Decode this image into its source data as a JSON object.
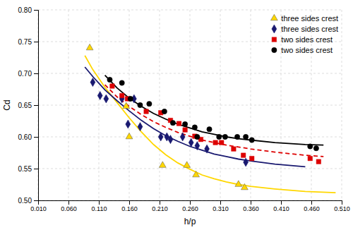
{
  "chart_data": {
    "type": "scatter",
    "xlabel": "h/p",
    "ylabel": "Cd",
    "xlim": [
      0.01,
      0.51
    ],
    "ylim": [
      0.5,
      0.8
    ],
    "xticks": [
      {
        "value": 0.01,
        "label": "0.010"
      },
      {
        "value": 0.06,
        "label": "0.060"
      },
      {
        "value": 0.11,
        "label": "0.110"
      },
      {
        "value": 0.16,
        "label": "0.160"
      },
      {
        "value": 0.21,
        "label": "0.210"
      },
      {
        "value": 0.26,
        "label": "0.260"
      },
      {
        "value": 0.31,
        "label": "0.310"
      },
      {
        "value": 0.36,
        "label": "0.360"
      },
      {
        "value": 0.41,
        "label": "0.410"
      },
      {
        "value": 0.46,
        "label": "0.460"
      },
      {
        "value": 0.51,
        "label": "0.510"
      }
    ],
    "yticks": [
      {
        "value": 0.5,
        "label": "0.50"
      },
      {
        "value": 0.55,
        "label": "0.55"
      },
      {
        "value": 0.6,
        "label": "0.60"
      },
      {
        "value": 0.65,
        "label": "0.65"
      },
      {
        "value": 0.7,
        "label": "0.70"
      },
      {
        "value": 0.75,
        "label": "0.75"
      },
      {
        "value": 0.8,
        "label": "0.80"
      }
    ],
    "grid": true,
    "legend": "upper right",
    "series": [
      {
        "type": "line",
        "color": "#FFD700",
        "line_style": "solid",
        "x": [
          0.087,
          0.1,
          0.12,
          0.14,
          0.16,
          0.18,
          0.2,
          0.22,
          0.24,
          0.26,
          0.28,
          0.3,
          0.32,
          0.34,
          0.36,
          0.4,
          0.45,
          0.5
        ],
        "values": [
          0.728,
          0.706,
          0.678,
          0.654,
          0.63,
          0.608,
          0.588,
          0.572,
          0.559,
          0.549,
          0.54,
          0.534,
          0.529,
          0.525,
          0.522,
          0.518,
          0.514,
          0.512
        ]
      },
      {
        "type": "line",
        "color": "#191970",
        "line_style": "solid",
        "x": [
          0.087,
          0.1,
          0.12,
          0.14,
          0.16,
          0.18,
          0.2,
          0.22,
          0.24,
          0.26,
          0.28,
          0.3,
          0.32,
          0.34,
          0.36,
          0.4,
          0.45
        ],
        "values": [
          0.71,
          0.695,
          0.674,
          0.657,
          0.641,
          0.626,
          0.613,
          0.602,
          0.593,
          0.585,
          0.579,
          0.573,
          0.569,
          0.565,
          0.562,
          0.557,
          0.553
        ]
      },
      {
        "type": "line",
        "color": "#DD0000",
        "line_style": "dashed",
        "x": [
          0.12,
          0.14,
          0.16,
          0.18,
          0.2,
          0.22,
          0.24,
          0.26,
          0.28,
          0.3,
          0.32,
          0.34,
          0.36,
          0.4,
          0.45,
          0.48
        ],
        "values": [
          0.682,
          0.663,
          0.648,
          0.635,
          0.624,
          0.615,
          0.607,
          0.601,
          0.595,
          0.591,
          0.587,
          0.584,
          0.581,
          0.576,
          0.571,
          0.569
        ]
      },
      {
        "type": "line",
        "color": "black",
        "line_style": "solid",
        "x": [
          0.12,
          0.14,
          0.16,
          0.18,
          0.2,
          0.22,
          0.24,
          0.26,
          0.28,
          0.3,
          0.32,
          0.34,
          0.36,
          0.4,
          0.45,
          0.48
        ],
        "values": [
          0.697,
          0.677,
          0.661,
          0.648,
          0.637,
          0.628,
          0.62,
          0.614,
          0.608,
          0.604,
          0.6,
          0.597,
          0.595,
          0.591,
          0.588,
          0.587
        ]
      },
      {
        "type": "scatter",
        "name": "three sides crest",
        "color": "#FFD700",
        "marker": "triangle",
        "x": [
          0.095,
          0.155,
          0.16,
          0.215,
          0.255,
          0.27,
          0.34,
          0.35
        ],
        "values": [
          0.74,
          0.648,
          0.6,
          0.555,
          0.555,
          0.54,
          0.525,
          0.52
        ]
      },
      {
        "type": "scatter",
        "name": "three sides crest",
        "color": "#191970",
        "marker": "diamond",
        "x": [
          0.1,
          0.112,
          0.122,
          0.148,
          0.158,
          0.168,
          0.178,
          0.212,
          0.222,
          0.228,
          0.248,
          0.262,
          0.272,
          0.288,
          0.352
        ],
        "values": [
          0.686,
          0.665,
          0.66,
          0.66,
          0.62,
          0.66,
          0.616,
          0.6,
          0.6,
          0.596,
          0.6,
          0.591,
          0.586,
          0.581,
          0.56
        ]
      },
      {
        "type": "scatter",
        "name": "two sides crest",
        "color": "#DD0000",
        "marker": "square",
        "x": [
          0.132,
          0.148,
          0.157,
          0.188,
          0.212,
          0.228,
          0.242,
          0.252,
          0.268,
          0.278,
          0.302,
          0.312,
          0.332,
          0.348,
          0.362,
          0.458,
          0.472
        ],
        "values": [
          0.68,
          0.665,
          0.66,
          0.64,
          0.638,
          0.626,
          0.621,
          0.611,
          0.601,
          0.596,
          0.591,
          0.591,
          0.581,
          0.571,
          0.566,
          0.566,
          0.561
        ]
      },
      {
        "type": "scatter",
        "name": "two sides crest",
        "color": "black",
        "marker": "circle",
        "x": [
          0.128,
          0.148,
          0.162,
          0.178,
          0.193,
          0.218,
          0.232,
          0.252,
          0.268,
          0.272,
          0.292,
          0.308,
          0.318,
          0.338,
          0.352,
          0.362,
          0.458,
          0.468
        ],
        "values": [
          0.69,
          0.685,
          0.66,
          0.65,
          0.652,
          0.64,
          0.622,
          0.62,
          0.615,
          0.6,
          0.612,
          0.6,
          0.6,
          0.6,
          0.6,
          0.595,
          0.585,
          0.582
        ]
      }
    ]
  }
}
